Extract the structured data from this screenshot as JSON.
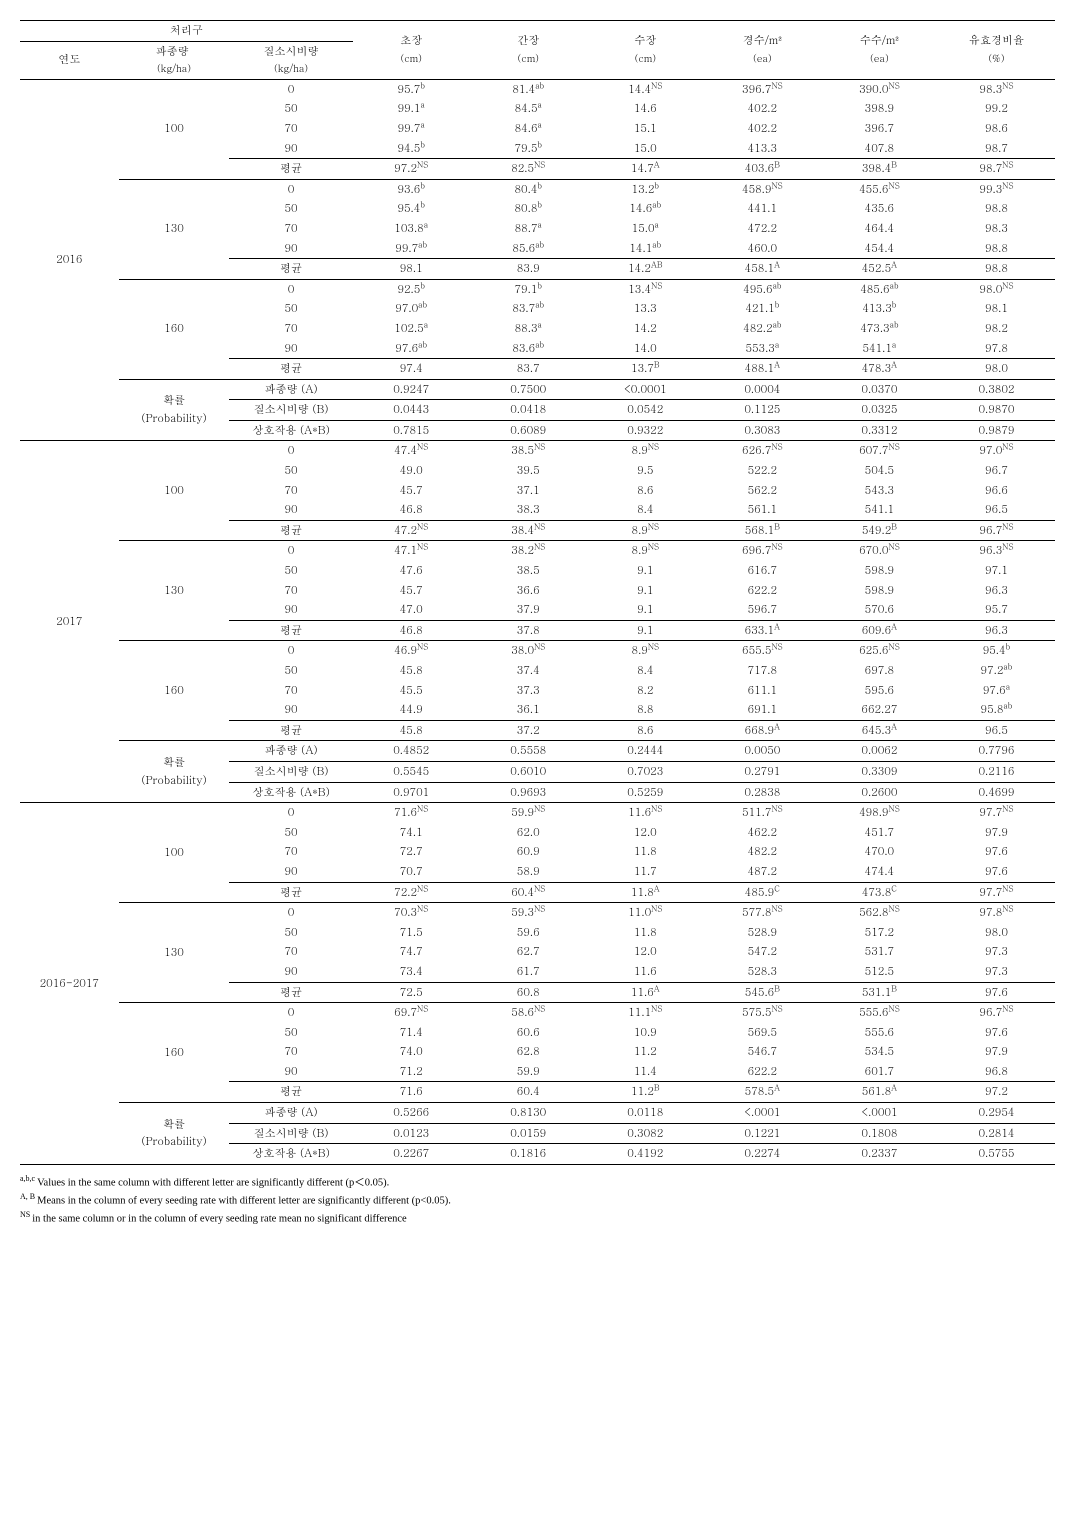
{
  "header": {
    "group": "처리구",
    "group_sub": {
      "year": "연도",
      "seed": "파종량 ",
      "seed_unit": "(kg/ha)",
      "nitro": "질소시비량",
      "nitro_unit": "(kg/ha)"
    },
    "cols": [
      {
        "label": "초장",
        "unit": "(cm)"
      },
      {
        "label": "간장",
        "unit": "(cm)"
      },
      {
        "label": "수장",
        "unit": "(cm)"
      },
      {
        "label": "경수/m²",
        "unit": "(ea)"
      },
      {
        "label": "수수/m²",
        "unit": "(ea)"
      },
      {
        "label": "유효경비율",
        "unit": "(%)"
      }
    ]
  },
  "labels": {
    "mean": "평균",
    "prob": "확률",
    "prob_en": "(Probability)",
    "A": "파종량 (A)",
    "B": "질소시비량 (B)",
    "AB": "상호작용 (A*B)"
  },
  "years": [
    {
      "year": "2016",
      "blocks": [
        {
          "seed": "100",
          "rows": [
            [
              "0",
              "95.7",
              "b",
              "81.4",
              "ab",
              "14.4",
              "NS",
              "396.7",
              "NS",
              "390.0",
              "NS",
              "98.3",
              "NS"
            ],
            [
              "50",
              "99.1",
              "a",
              "84.5",
              "a",
              "14.6",
              "",
              "402.2",
              "",
              "398.9",
              "",
              "99.2",
              ""
            ],
            [
              "70",
              "99.7",
              "a",
              "84.6",
              "a",
              "15.1",
              "",
              "402.2",
              "",
              "396.7",
              "",
              "98.6",
              ""
            ],
            [
              "90",
              "94.5",
              "b",
              "79.5",
              "b",
              "15.0",
              "",
              "413.3",
              "",
              "407.8",
              "",
              "98.7",
              ""
            ]
          ],
          "mean": [
            "97.2",
            "NS",
            "82.5",
            "NS",
            "14.7",
            "A",
            "403.6",
            "B",
            "398.4",
            "B",
            "98.7",
            "NS"
          ]
        },
        {
          "seed": "130",
          "rows": [
            [
              "0",
              "93.6",
              "b",
              "80.4",
              "b",
              "13.2",
              "b",
              "458.9",
              "NS",
              "455.6",
              "NS",
              "99.3",
              "NS"
            ],
            [
              "50",
              "95.4",
              "b",
              "80.8",
              "b",
              "14.6",
              "ab",
              "441.1",
              "",
              "435.6",
              "",
              "98.8",
              ""
            ],
            [
              "70",
              "103.8",
              "a",
              "88.7",
              "a",
              "15.0",
              "a",
              "472.2",
              "",
              "464.4",
              "",
              "98.3",
              ""
            ],
            [
              "90",
              "99.7",
              "ab",
              "85.6",
              "ab",
              "14.1",
              "ab",
              "460.0",
              "",
              "454.4",
              "",
              "98.8",
              ""
            ]
          ],
          "mean": [
            "98.1",
            "",
            "83.9",
            "",
            "14.2",
            "AB",
            "458.1",
            "A",
            "452.5",
            "A",
            "98.8",
            ""
          ]
        },
        {
          "seed": "160",
          "rows": [
            [
              "0",
              "92.5",
              "b",
              "79.1",
              "b",
              "13.4",
              "NS",
              "495.6",
              "ab",
              "485.6",
              "ab",
              "98.0",
              "NS"
            ],
            [
              "50",
              "97.0",
              "ab",
              "83.7",
              "ab",
              "13.3",
              "",
              "421.1",
              "b",
              "413.3",
              "b",
              "98.1",
              ""
            ],
            [
              "70",
              "102.5",
              "a",
              "88.3",
              "a",
              "14.2",
              "",
              "482.2",
              "ab",
              "473.3",
              "ab",
              "98.2",
              ""
            ],
            [
              "90",
              "97.6",
              "ab",
              "83.6",
              "ab",
              "14.0",
              "",
              "553.3",
              "a",
              "541.1",
              "a",
              "97.8",
              ""
            ]
          ],
          "mean": [
            "97.4",
            "",
            "83.7",
            "",
            "13.7",
            "B",
            "488.1",
            "A",
            "478.3",
            "A",
            "98.0",
            ""
          ]
        }
      ],
      "prob": {
        "A": [
          "0.9247",
          "0.7500",
          "<0.0001",
          "0.0004",
          "0.0370",
          "0.3802"
        ],
        "B": [
          "0.0443",
          "0.0418",
          "0.0542",
          "0.1125",
          "0.0325",
          "0.9870"
        ],
        "AB": [
          "0.7815",
          "0.6089",
          "0.9322",
          "0.3083",
          "0.3312",
          "0.9879"
        ]
      }
    },
    {
      "year": "2017",
      "blocks": [
        {
          "seed": "100",
          "rows": [
            [
              "0",
              "47.4",
              "NS",
              "38.5",
              "NS",
              "8.9",
              "NS",
              "626.7",
              "NS",
              "607.7",
              "NS",
              "97.0",
              "NS"
            ],
            [
              "50",
              "49.0",
              "",
              "39.5",
              "",
              "9.5",
              "",
              "522.2",
              "",
              "504.5",
              "",
              "96.7",
              ""
            ],
            [
              "70",
              "45.7",
              "",
              "37.1",
              "",
              "8.6",
              "",
              "562.2",
              "",
              "543.3",
              "",
              "96.6",
              ""
            ],
            [
              "90",
              "46.8",
              "",
              "38.3",
              "",
              "8.4",
              "",
              "561.1",
              "",
              "541.1",
              "",
              "96.5",
              ""
            ]
          ],
          "mean": [
            "47.2",
            "NS",
            "38.4",
            "NS",
            "8.9",
            "NS",
            "568.1",
            "B",
            "549.2",
            "B",
            "96.7",
            "NS"
          ]
        },
        {
          "seed": "130",
          "rows": [
            [
              "0",
              "47.1",
              "NS",
              "38.2",
              "NS",
              "8.9",
              "NS",
              "696.7",
              "NS",
              "670.0",
              "NS",
              "96.3",
              "NS"
            ],
            [
              "50",
              "47.6",
              "",
              "38.5",
              "",
              "9.1",
              "",
              "616.7",
              "",
              "598.9",
              "",
              "97.1",
              ""
            ],
            [
              "70",
              "45.7",
              "",
              "36.6",
              "",
              "9.1",
              "",
              "622.2",
              "",
              "598.9",
              "",
              "96.3",
              ""
            ],
            [
              "90",
              "47.0",
              "",
              "37.9",
              "",
              "9.1",
              "",
              "596.7",
              "",
              "570.6",
              "",
              "95.7",
              ""
            ]
          ],
          "mean": [
            "46.8",
            "",
            "37.8",
            "",
            "9.1",
            "",
            "633.1",
            "A",
            "609.6",
            "A",
            "96.3",
            ""
          ]
        },
        {
          "seed": "160",
          "rows": [
            [
              "0",
              "46.9",
              "NS",
              "38.0",
              "NS",
              "8.9",
              "NS",
              "655.5",
              "NS",
              "625.6",
              "NS",
              "95.4",
              "b"
            ],
            [
              "50",
              "45.8",
              "",
              "37.4",
              "",
              "8.4",
              "",
              "717.8",
              "",
              "697.8",
              "",
              "97.2",
              "ab"
            ],
            [
              "70",
              "45.5",
              "",
              "37.3",
              "",
              "8.2",
              "",
              "611.1",
              "",
              "595.6",
              "",
              "97.6",
              "a"
            ],
            [
              "90",
              "44.9",
              "",
              "36.1",
              "",
              "8.8",
              "",
              "691.1",
              "",
              "662.27",
              "",
              "95.8",
              "ab"
            ]
          ],
          "mean": [
            "45.8",
            "",
            "37.2",
            "",
            "8.6",
            "",
            "668.9",
            "A",
            "645.3",
            "A",
            "96.5",
            ""
          ]
        }
      ],
      "prob": {
        "A": [
          "0.4852",
          "0.5558",
          "0.2444",
          "0.0050",
          "0.0062",
          "0.7796"
        ],
        "B": [
          "0.5545",
          "0.6010",
          "0.7023",
          "0.2791",
          "0.3309",
          "0.2116"
        ],
        "AB": [
          "0.9701",
          "0.9693",
          "0.5259",
          "0.2838",
          "0.2600",
          "0.4699"
        ]
      }
    },
    {
      "year": "2016-2017",
      "blocks": [
        {
          "seed": "100",
          "rows": [
            [
              "0",
              "71.6",
              "NS",
              "59.9",
              "NS",
              "11.6",
              "NS",
              "511.7",
              "NS",
              "498.9",
              "NS",
              "97.7",
              "NS"
            ],
            [
              "50",
              "74.1",
              "",
              "62.0",
              "",
              "12.0",
              "",
              "462.2",
              "",
              "451.7",
              "",
              "97.9",
              ""
            ],
            [
              "70",
              "72.7",
              "",
              "60.9",
              "",
              "11.8",
              "",
              "482.2",
              "",
              "470.0",
              "",
              "97.6",
              ""
            ],
            [
              "90",
              "70.7",
              "",
              "58.9",
              "",
              "11.7",
              "",
              "487.2",
              "",
              "474.4",
              "",
              "97.6",
              ""
            ]
          ],
          "mean": [
            "72.2",
            "NS",
            "60.4",
            "NS",
            "11.8",
            "A",
            "485.9",
            "C",
            "473.8",
            "C",
            "97.7",
            "NS"
          ]
        },
        {
          "seed": "130",
          "rows": [
            [
              "0",
              "70.3",
              "NS",
              "59.3",
              "NS",
              "11.0",
              "NS",
              "577.8",
              "NS",
              "562.8",
              "NS",
              "97.8",
              "NS"
            ],
            [
              "50",
              "71.5",
              "",
              "59.6",
              "",
              "11.8",
              "",
              "528.9",
              "",
              "517.2",
              "",
              "98.0",
              ""
            ],
            [
              "70",
              "74.7",
              "",
              "62.7",
              "",
              "12.0",
              "",
              "547.2",
              "",
              "531.7",
              "",
              "97.3",
              ""
            ],
            [
              "90",
              "73.4",
              "",
              "61.7",
              "",
              "11.6",
              "",
              "528.3",
              "",
              "512.5",
              "",
              "97.3",
              ""
            ]
          ],
          "mean": [
            "72.5",
            "",
            "60.8",
            "",
            "11.6",
            "A",
            "545.6",
            "B",
            "531.1",
            "B",
            "97.6",
            ""
          ]
        },
        {
          "seed": "160",
          "rows": [
            [
              "0",
              "69.7",
              "NS",
              "58.6",
              "NS",
              "11.1",
              "NS",
              "575.5",
              "NS",
              "555.6",
              "NS",
              "96.7",
              "NS"
            ],
            [
              "50",
              "71.4",
              "",
              "60.6",
              "",
              "10.9",
              "",
              "569.5",
              "",
              "555.6",
              "",
              "97.6",
              ""
            ],
            [
              "70",
              "74.0",
              "",
              "62.8",
              "",
              "11.2",
              "",
              "546.7",
              "",
              "534.5",
              "",
              "97.9",
              ""
            ],
            [
              "90",
              "71.2",
              "",
              "59.9",
              "",
              "11.4",
              "",
              "622.2",
              "",
              "601.7",
              "",
              "96.8",
              ""
            ]
          ],
          "mean": [
            "71.6",
            "",
            "60.4",
            "",
            "11.2",
            "B",
            "578.5",
            "A",
            "561.8",
            "A",
            "97.2",
            ""
          ]
        }
      ],
      "prob": {
        "A": [
          "0.5266",
          "0.8130",
          "0.0118",
          "<.0001",
          "<.0001",
          "0.2954"
        ],
        "B": [
          "0.0123",
          "0.0159",
          "0.3082",
          "0.1221",
          "0.1808",
          "0.2814"
        ],
        "AB": [
          "0.2267",
          "0.1816",
          "0.4192",
          "0.2274",
          "0.2337",
          "0.5755"
        ]
      }
    }
  ],
  "footnotes": {
    "f1_pre": "a,b,c ",
    "f1": "Values in the same column with different letter are significantly different (p＜0.05).",
    "f2_pre": "A, B ",
    "f2": "Means in the column of every seeding rate with different letter are significantly different (p<0.05).",
    "f3_pre": "NS ",
    "f3": "in the same column or in the column of every seeding rate mean no significant difference"
  }
}
